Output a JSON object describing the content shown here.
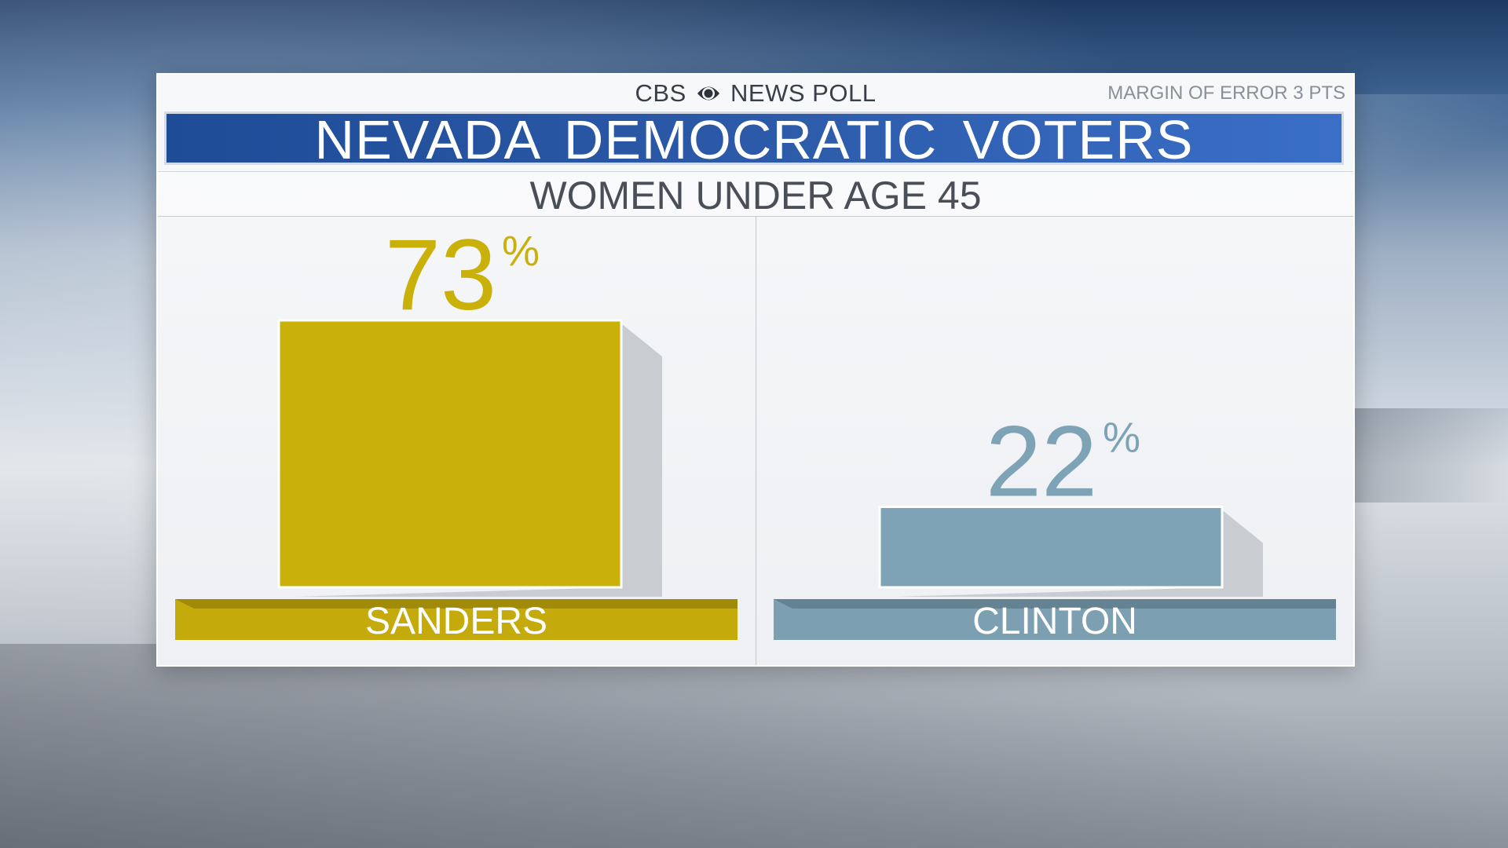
{
  "header": {
    "brand_left": "CBS",
    "brand_right": "NEWS POLL",
    "margin_of_error": "MARGIN OF ERROR 3 PTS",
    "title": "NEVADA DEMOCRATIC VOTERS",
    "subtitle": "WOMEN UNDER AGE 45"
  },
  "colors": {
    "title_bar": "#2b5bab",
    "sanders": "#c9b10a",
    "sanders_label": "#c4aa0a",
    "clinton": "#7fa3b6",
    "clinton_label": "#7c9fb2",
    "clinton_text": "#7fa3b6"
  },
  "icons": {
    "brand_eye": "cbs-eye-icon"
  },
  "chart_data": {
    "type": "bar",
    "title": "NEVADA DEMOCRATIC VOTERS",
    "subtitle": "WOMEN UNDER AGE 45",
    "categories": [
      "SANDERS",
      "CLINTON"
    ],
    "values": [
      73,
      22
    ],
    "unit": "%",
    "ylim": [
      0,
      100
    ],
    "grid": false,
    "legend": "none"
  }
}
